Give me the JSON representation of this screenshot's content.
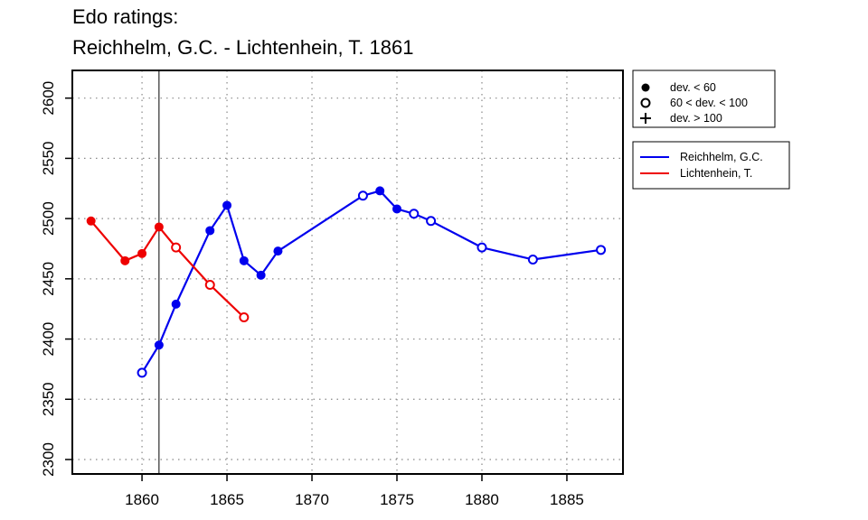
{
  "chart_data": {
    "type": "line",
    "title": "Edo ratings:",
    "subtitle": "Reichhelm, G.C. - Lichtenhein, T. 1861",
    "xlabel": "",
    "ylabel": "",
    "xlim": [
      1855.9,
      1888.3
    ],
    "ylim": [
      2288,
      2623
    ],
    "x_ticks": [
      1860,
      1865,
      1870,
      1875,
      1880,
      1885
    ],
    "y_ticks": [
      2300,
      2350,
      2400,
      2450,
      2500,
      2550,
      2600
    ],
    "grid": true,
    "vertical_line": 1861,
    "marker_legend": [
      {
        "symbol": "filled-circle",
        "label": "dev. < 60"
      },
      {
        "symbol": "open-circle",
        "label": "60 < dev. < 100"
      },
      {
        "symbol": "plus",
        "label": "dev. > 100"
      }
    ],
    "colors": {
      "Reichhelm, G.C.": "#0000ee",
      "Lichtenhein, T.": "#ee0000"
    },
    "series": [
      {
        "name": "Reichhelm, G.C.",
        "points": [
          {
            "x": 1860,
            "y": 2372,
            "m": "open"
          },
          {
            "x": 1861,
            "y": 2395,
            "m": "filled"
          },
          {
            "x": 1862,
            "y": 2429,
            "m": "filled"
          },
          {
            "x": 1864,
            "y": 2490,
            "m": "filled"
          },
          {
            "x": 1865,
            "y": 2511,
            "m": "filled"
          },
          {
            "x": 1866,
            "y": 2465,
            "m": "filled"
          },
          {
            "x": 1867,
            "y": 2453,
            "m": "filled"
          },
          {
            "x": 1868,
            "y": 2473,
            "m": "filled"
          },
          {
            "x": 1873,
            "y": 2519,
            "m": "open"
          },
          {
            "x": 1874,
            "y": 2523,
            "m": "filled"
          },
          {
            "x": 1875,
            "y": 2508,
            "m": "filled"
          },
          {
            "x": 1876,
            "y": 2504,
            "m": "open"
          },
          {
            "x": 1877,
            "y": 2498,
            "m": "open"
          },
          {
            "x": 1880,
            "y": 2476,
            "m": "open"
          },
          {
            "x": 1883,
            "y": 2466,
            "m": "open"
          },
          {
            "x": 1887,
            "y": 2474,
            "m": "open"
          }
        ]
      },
      {
        "name": "Lichtenhein, T.",
        "points": [
          {
            "x": 1857,
            "y": 2498,
            "m": "filled"
          },
          {
            "x": 1859,
            "y": 2465,
            "m": "filled"
          },
          {
            "x": 1860,
            "y": 2471,
            "m": "filled"
          },
          {
            "x": 1861,
            "y": 2493,
            "m": "filled"
          },
          {
            "x": 1862,
            "y": 2476,
            "m": "open"
          },
          {
            "x": 1864,
            "y": 2445,
            "m": "open"
          },
          {
            "x": 1866,
            "y": 2418,
            "m": "open"
          }
        ]
      }
    ]
  }
}
